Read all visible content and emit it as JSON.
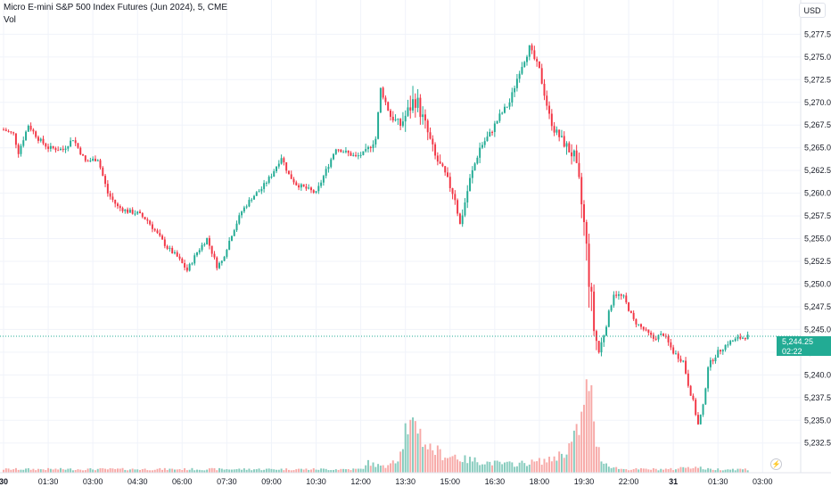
{
  "chart_data": {
    "type": "candlestick",
    "title": "Micro E-mini S&P 500 Index Futures (Jun 2024), 5, CME",
    "volume_label": "Vol",
    "currency": "USD",
    "last_price": "5,244.25",
    "countdown": "02:22",
    "last_price_value": 5244.25,
    "y_ticks": [
      5277.5,
      5275.0,
      5272.5,
      5270.0,
      5267.5,
      5265.0,
      5262.5,
      5260.0,
      5257.5,
      5255.0,
      5252.5,
      5250.0,
      5247.5,
      5245.0,
      5242.5,
      5240.0,
      5237.5,
      5235.0,
      5232.5
    ],
    "y_tick_labels": [
      "5,277.50",
      "5,275.00",
      "5,272.50",
      "5,270.00",
      "5,267.50",
      "5,265.00",
      "5,262.50",
      "5,260.00",
      "5,257.50",
      "5,255.00",
      "5,252.50",
      "5,250.00",
      "5,247.50",
      "5,245.00",
      "5,242.50",
      "5,240.00",
      "5,237.50",
      "5,235.00",
      "5,232.50"
    ],
    "ylim": [
      5231.0,
      5279.5
    ],
    "x_labels": [
      {
        "t": 0,
        "label": "30",
        "bold": true
      },
      {
        "t": 18,
        "label": "01:30"
      },
      {
        "t": 36,
        "label": "03:00"
      },
      {
        "t": 54,
        "label": "04:30"
      },
      {
        "t": 72,
        "label": "06:00"
      },
      {
        "t": 90,
        "label": "07:30"
      },
      {
        "t": 108,
        "label": "09:00"
      },
      {
        "t": 126,
        "label": "10:30"
      },
      {
        "t": 144,
        "label": "12:00"
      },
      {
        "t": 162,
        "label": "13:30"
      },
      {
        "t": 180,
        "label": "15:00"
      },
      {
        "t": 198,
        "label": "16:30"
      },
      {
        "t": 216,
        "label": "18:00"
      },
      {
        "t": 234,
        "label": "19:30"
      },
      {
        "t": 252,
        "label": "22:00"
      },
      {
        "t": 270,
        "label": "31",
        "bold": true
      },
      {
        "t": 288,
        "label": "01:30"
      },
      {
        "t": 306,
        "label": "03:00"
      }
    ],
    "price_path": [
      [
        0,
        5267.0
      ],
      [
        4,
        5266.5
      ],
      [
        6,
        5264.5
      ],
      [
        10,
        5267.5
      ],
      [
        14,
        5266.0
      ],
      [
        18,
        5265.0
      ],
      [
        24,
        5264.8
      ],
      [
        28,
        5266.0
      ],
      [
        33,
        5263.5
      ],
      [
        38,
        5263.8
      ],
      [
        42,
        5260.0
      ],
      [
        46,
        5258.5
      ],
      [
        50,
        5258.0
      ],
      [
        54,
        5257.8
      ],
      [
        58,
        5257.0
      ],
      [
        62,
        5255.5
      ],
      [
        66,
        5254.0
      ],
      [
        70,
        5253.0
      ],
      [
        74,
        5251.5
      ],
      [
        78,
        5253.5
      ],
      [
        82,
        5255.0
      ],
      [
        86,
        5252.0
      ],
      [
        88,
        5252.5
      ],
      [
        92,
        5255.5
      ],
      [
        96,
        5258.0
      ],
      [
        100,
        5259.5
      ],
      [
        104,
        5260.5
      ],
      [
        108,
        5262.0
      ],
      [
        112,
        5264.0
      ],
      [
        115,
        5262.0
      ],
      [
        118,
        5261.0
      ],
      [
        122,
        5260.5
      ],
      [
        126,
        5260.0
      ],
      [
        130,
        5262.5
      ],
      [
        134,
        5265.0
      ],
      [
        138,
        5264.5
      ],
      [
        142,
        5264.0
      ],
      [
        146,
        5264.5
      ],
      [
        150,
        5266.0
      ],
      [
        152,
        5271.5
      ],
      [
        156,
        5268.5
      ],
      [
        160,
        5267.5
      ],
      [
        166,
        5270.5
      ],
      [
        170,
        5267.5
      ],
      [
        174,
        5264.0
      ],
      [
        178,
        5262.0
      ],
      [
        182,
        5259.5
      ],
      [
        184,
        5256.5
      ],
      [
        188,
        5261.5
      ],
      [
        192,
        5265.0
      ],
      [
        196,
        5266.5
      ],
      [
        200,
        5268.5
      ],
      [
        204,
        5270.0
      ],
      [
        208,
        5273.5
      ],
      [
        212,
        5276.0
      ],
      [
        216,
        5273.5
      ],
      [
        220,
        5268.5
      ],
      [
        222,
        5267.0
      ],
      [
        226,
        5265.5
      ],
      [
        230,
        5264.0
      ],
      [
        232,
        5261.0
      ],
      [
        234,
        5256.5
      ],
      [
        236,
        5251.0
      ],
      [
        238,
        5245.0
      ],
      [
        240,
        5242.5
      ],
      [
        242,
        5244.5
      ],
      [
        246,
        5249.0
      ],
      [
        250,
        5248.5
      ],
      [
        254,
        5246.0
      ],
      [
        258,
        5245.0
      ],
      [
        262,
        5244.0
      ],
      [
        266,
        5244.5
      ],
      [
        270,
        5242.5
      ],
      [
        274,
        5241.5
      ],
      [
        276,
        5239.0
      ],
      [
        278,
        5237.0
      ],
      [
        280,
        5234.5
      ],
      [
        282,
        5236.5
      ],
      [
        284,
        5241.0
      ],
      [
        288,
        5242.5
      ],
      [
        292,
        5243.5
      ],
      [
        296,
        5244.0
      ],
      [
        300,
        5244.25
      ]
    ],
    "volume_profile": [
      [
        0,
        4
      ],
      [
        145,
        4
      ],
      [
        146,
        12
      ],
      [
        150,
        9
      ],
      [
        154,
        6
      ],
      [
        156,
        16
      ],
      [
        158,
        14
      ],
      [
        160,
        22
      ],
      [
        161,
        34
      ],
      [
        162,
        48
      ],
      [
        163,
        38
      ],
      [
        165,
        54
      ],
      [
        166,
        66
      ],
      [
        167,
        58
      ],
      [
        168,
        44
      ],
      [
        170,
        34
      ],
      [
        172,
        28
      ],
      [
        174,
        26
      ],
      [
        176,
        22
      ],
      [
        178,
        20
      ],
      [
        180,
        18
      ],
      [
        182,
        20
      ],
      [
        184,
        16
      ],
      [
        186,
        15
      ],
      [
        190,
        14
      ],
      [
        194,
        12
      ],
      [
        198,
        11
      ],
      [
        202,
        10
      ],
      [
        206,
        10
      ],
      [
        210,
        11
      ],
      [
        214,
        12
      ],
      [
        218,
        14
      ],
      [
        220,
        14
      ],
      [
        222,
        18
      ],
      [
        224,
        20
      ],
      [
        226,
        24
      ],
      [
        228,
        30
      ],
      [
        230,
        38
      ],
      [
        232,
        52
      ],
      [
        234,
        70
      ],
      [
        236,
        110
      ],
      [
        237,
        85
      ],
      [
        238,
        48
      ],
      [
        240,
        24
      ],
      [
        242,
        12
      ],
      [
        246,
        6
      ],
      [
        250,
        4
      ],
      [
        270,
        4
      ],
      [
        276,
        7
      ],
      [
        280,
        6
      ],
      [
        284,
        4
      ],
      [
        300,
        4
      ]
    ],
    "volume_max": 110,
    "colors": {
      "up": "#22ab94",
      "down": "#f23645",
      "vol_up": "#86cbbd",
      "vol_down": "#f7a9a7",
      "grid": "#f0f3fa",
      "axis_text": "#131722",
      "price_line": "#22ab94"
    }
  }
}
